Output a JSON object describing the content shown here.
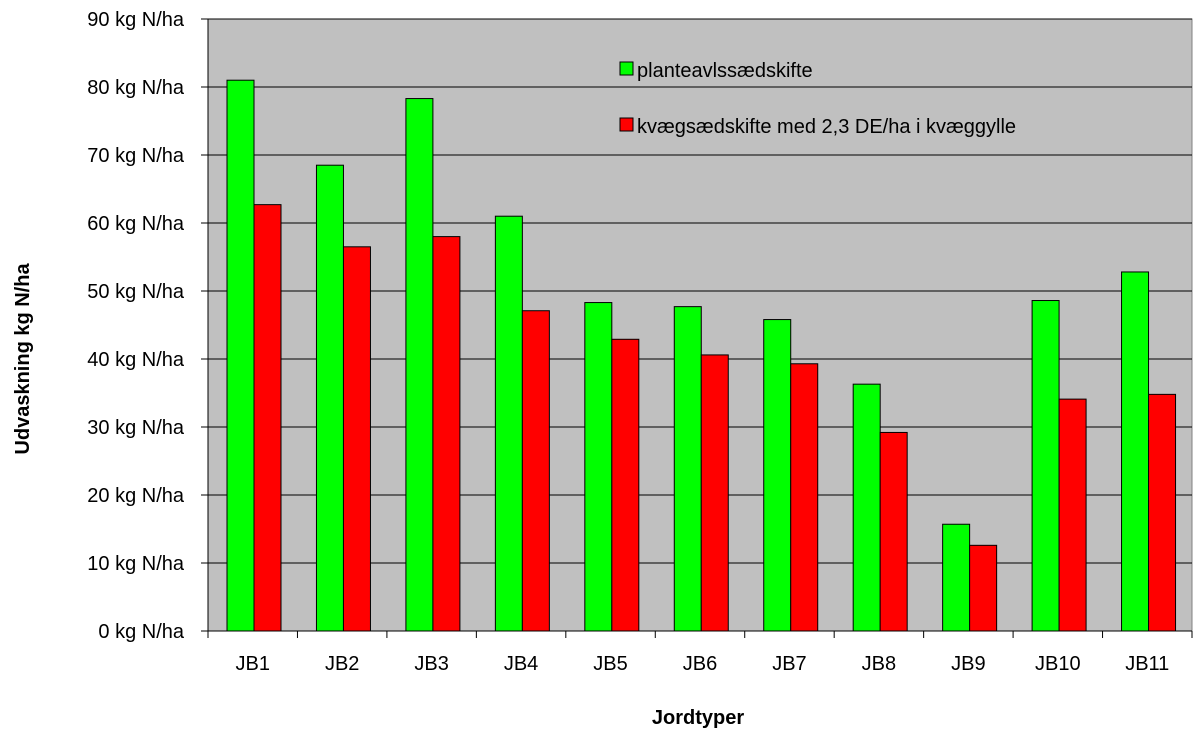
{
  "chart_data": {
    "type": "bar",
    "title": "",
    "xlabel": "Jordtyper",
    "ylabel": "Udvaskning kg N/ha",
    "ylim": [
      0,
      90
    ],
    "y_tick_values": [
      0,
      10,
      20,
      30,
      40,
      50,
      60,
      70,
      80,
      90
    ],
    "y_tick_labels": [
      "0 kg N/ha",
      "10 kg N/ha",
      "20 kg N/ha",
      "30 kg N/ha",
      "40 kg N/ha",
      "50 kg N/ha",
      "60 kg N/ha",
      "70 kg N/ha",
      "80 kg N/ha",
      "90 kg N/ha"
    ],
    "categories": [
      "JB1",
      "JB2",
      "JB3",
      "JB4",
      "JB5",
      "JB6",
      "JB7",
      "JB8",
      "JB9",
      "JB10",
      "JB11"
    ],
    "series": [
      {
        "name": "planteavlssædskifte",
        "color": "#00ff00",
        "values": [
          81,
          68.5,
          78.3,
          61,
          48.3,
          47.7,
          45.8,
          36.3,
          15.7,
          48.6,
          52.8
        ]
      },
      {
        "name": "kvægsædskifte med 2,3 DE/ha i kvæggylle",
        "color": "#ff0000",
        "values": [
          62.7,
          56.5,
          58,
          47.1,
          42.9,
          40.6,
          39.3,
          29.2,
          12.6,
          34.1,
          34.8
        ]
      }
    ],
    "plot_background": "#c0c0c0",
    "grid": true,
    "legend_position": "top-right"
  }
}
